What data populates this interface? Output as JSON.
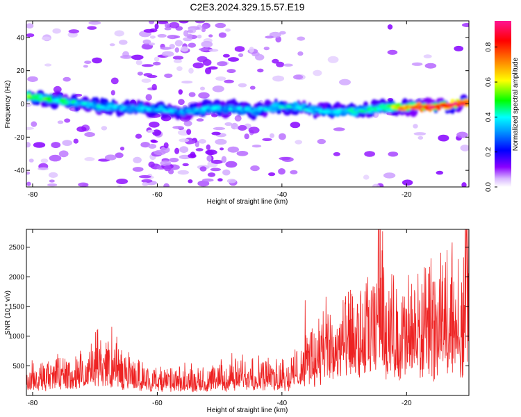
{
  "title": "C2E3.2024.329.15.57.E19",
  "chart_data": [
    {
      "type": "heatmap",
      "title": "C2E3.2024.329.15.57.E19",
      "xlabel": "Height of straight line (km)",
      "ylabel": "Frequency (Hz)",
      "xlim": [
        -81,
        -10
      ],
      "ylim": [
        -50,
        50
      ],
      "x_ticks": [
        -80,
        -60,
        -40,
        -20
      ],
      "y_ticks": [
        -40,
        -20,
        0,
        20,
        40
      ],
      "colorbar": {
        "label": "Normalized spectral amplitude",
        "range": [
          0,
          0.95
        ],
        "ticks": [
          0.0,
          0.2,
          0.4,
          0.6,
          0.8
        ],
        "colors": [
          "#ffffff",
          "#8a00ff",
          "#0000ff",
          "#00ffff",
          "#00ff00",
          "#ffff00",
          "#ff8000",
          "#ff0000",
          "#ff1493"
        ]
      },
      "ridge": [
        {
          "x": -80,
          "y": 4,
          "amp": 0.5
        },
        {
          "x": -76,
          "y": 2,
          "amp": 0.45
        },
        {
          "x": -72,
          "y": 0,
          "amp": 0.4
        },
        {
          "x": -68,
          "y": -2,
          "amp": 0.38
        },
        {
          "x": -64,
          "y": -3,
          "amp": 0.35
        },
        {
          "x": -60,
          "y": -3,
          "amp": 0.33
        },
        {
          "x": -56,
          "y": -5,
          "amp": 0.32
        },
        {
          "x": -52,
          "y": -3,
          "amp": 0.35
        },
        {
          "x": -48,
          "y": -3,
          "amp": 0.36
        },
        {
          "x": -44,
          "y": -4,
          "amp": 0.34
        },
        {
          "x": -40,
          "y": -1,
          "amp": 0.38
        },
        {
          "x": -36,
          "y": -3,
          "amp": 0.37
        },
        {
          "x": -32,
          "y": -5,
          "amp": 0.36
        },
        {
          "x": -28,
          "y": -4,
          "amp": 0.4
        },
        {
          "x": -24,
          "y": -2,
          "amp": 0.45
        },
        {
          "x": -20,
          "y": -2,
          "amp": 0.75
        },
        {
          "x": -16,
          "y": -2,
          "amp": 0.85
        },
        {
          "x": -12,
          "y": 0,
          "amp": 0.88
        },
        {
          "x": -10,
          "y": 1,
          "amp": 0.7
        }
      ]
    },
    {
      "type": "line",
      "xlabel": "Height of straight line (km)",
      "ylabel": "SNR (10 * v/v)",
      "xlim": [
        -81,
        -10
      ],
      "ylim": [
        0,
        2800
      ],
      "x_ticks": [
        -80,
        -60,
        -40,
        -20
      ],
      "y_ticks": [
        500,
        1000,
        1500,
        2000,
        2500
      ],
      "line_color": "#ee2222",
      "envelope": {
        "x": [
          -81,
          -78,
          -75,
          -72,
          -69,
          -66,
          -63,
          -60,
          -57,
          -54,
          -51,
          -48,
          -45,
          -42,
          -39,
          -36,
          -33,
          -30,
          -27,
          -25,
          -24.5,
          -23,
          -21,
          -19,
          -17,
          -15,
          -13,
          -11.5,
          -11,
          -10.5,
          -10
        ],
        "y": [
          250,
          300,
          380,
          320,
          600,
          420,
          300,
          250,
          240,
          230,
          260,
          320,
          380,
          320,
          320,
          600,
          800,
          900,
          1000,
          1050,
          2200,
          1100,
          1000,
          1100,
          1050,
          1200,
          1500,
          1350,
          1000,
          1800,
          1900
        ]
      }
    }
  ]
}
